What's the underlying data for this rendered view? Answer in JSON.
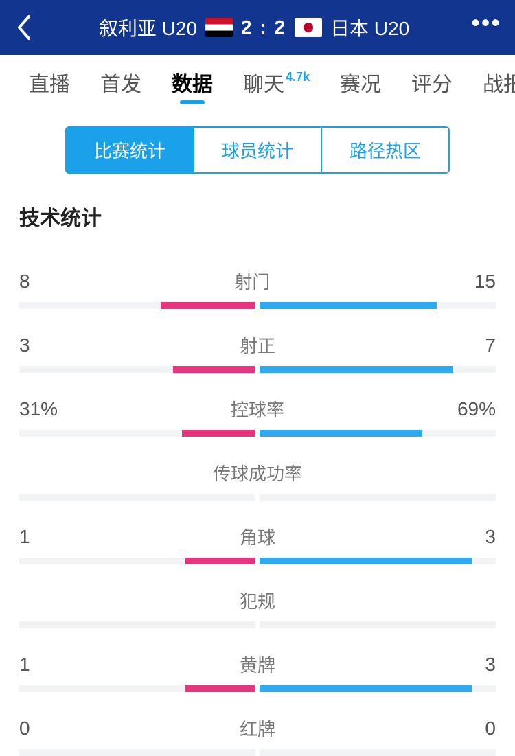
{
  "colors": {
    "header_bg": "#12358f",
    "accent": "#1ba0ea",
    "home_bar": "#e5357f",
    "away_bar": "#2fa9ef",
    "track": "#f1f3f5",
    "badge": "#1ba0ea"
  },
  "header": {
    "home_team": "叙利亚 U20",
    "away_team": "日本 U20",
    "score": "2 : 2"
  },
  "tabs": {
    "items": [
      {
        "label": "直播",
        "active": false
      },
      {
        "label": "首发",
        "active": false
      },
      {
        "label": "数据",
        "active": true
      },
      {
        "label": "聊天",
        "active": false,
        "badge": "4.7k"
      },
      {
        "label": "赛况",
        "active": false
      },
      {
        "label": "评分",
        "active": false
      },
      {
        "label": "战报",
        "active": false
      }
    ]
  },
  "segmented": {
    "items": [
      {
        "label": "比赛统计",
        "active": true
      },
      {
        "label": "球员统计",
        "active": false
      },
      {
        "label": "路径热区",
        "active": false
      }
    ]
  },
  "section_title": "技术统计",
  "stats": [
    {
      "label": "射门",
      "home": "8",
      "away": "15",
      "home_pct": 40,
      "away_pct": 75
    },
    {
      "label": "射正",
      "home": "3",
      "away": "7",
      "home_pct": 35,
      "away_pct": 82
    },
    {
      "label": "控球率",
      "home": "31%",
      "away": "69%",
      "home_pct": 31,
      "away_pct": 69
    },
    {
      "label": "传球成功率",
      "home": "",
      "away": "",
      "home_pct": 0,
      "away_pct": 0
    },
    {
      "label": "角球",
      "home": "1",
      "away": "3",
      "home_pct": 30,
      "away_pct": 90
    },
    {
      "label": "犯规",
      "home": "",
      "away": "",
      "home_pct": 0,
      "away_pct": 0
    },
    {
      "label": "黄牌",
      "home": "1",
      "away": "3",
      "home_pct": 30,
      "away_pct": 90
    },
    {
      "label": "红牌",
      "home": "0",
      "away": "0",
      "home_pct": 0,
      "away_pct": 0
    }
  ]
}
